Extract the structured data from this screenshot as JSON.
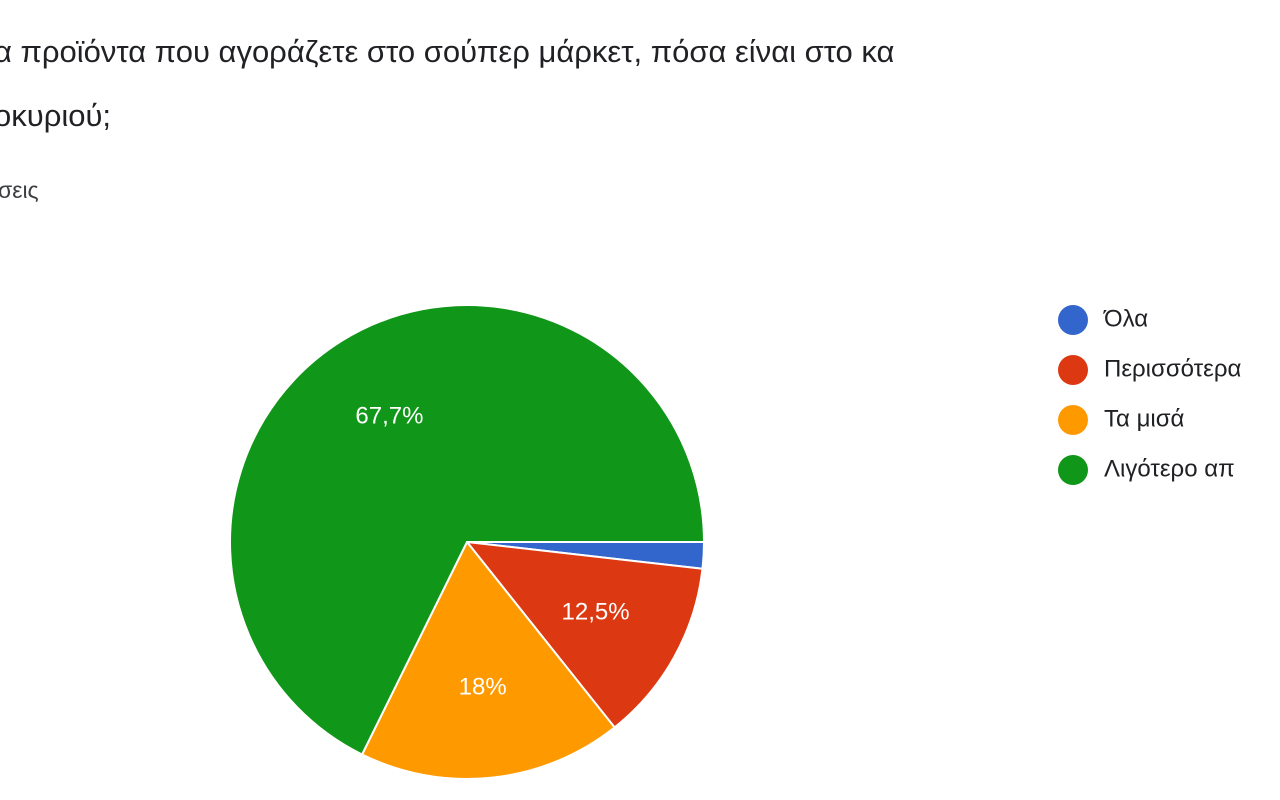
{
  "chart_data": {
    "type": "pie",
    "title": [
      "α προϊόντα που αγοράζετε στο σούπερ μάρκετ, πόσα είναι στο κα",
      "οκυριού;"
    ],
    "subtitle": "σεις",
    "categories": [
      "Όλα",
      "Περισσότερα",
      "Τα μισά",
      "Λιγότερο απ"
    ],
    "values": [
      1.8,
      12.5,
      18,
      67.7
    ],
    "value_labels": [
      null,
      "12,5%",
      "18%",
      "67,7%"
    ],
    "colors": [
      "#3366cc",
      "#dc3912",
      "#ff9900",
      "#109618"
    ],
    "legend": "right"
  }
}
